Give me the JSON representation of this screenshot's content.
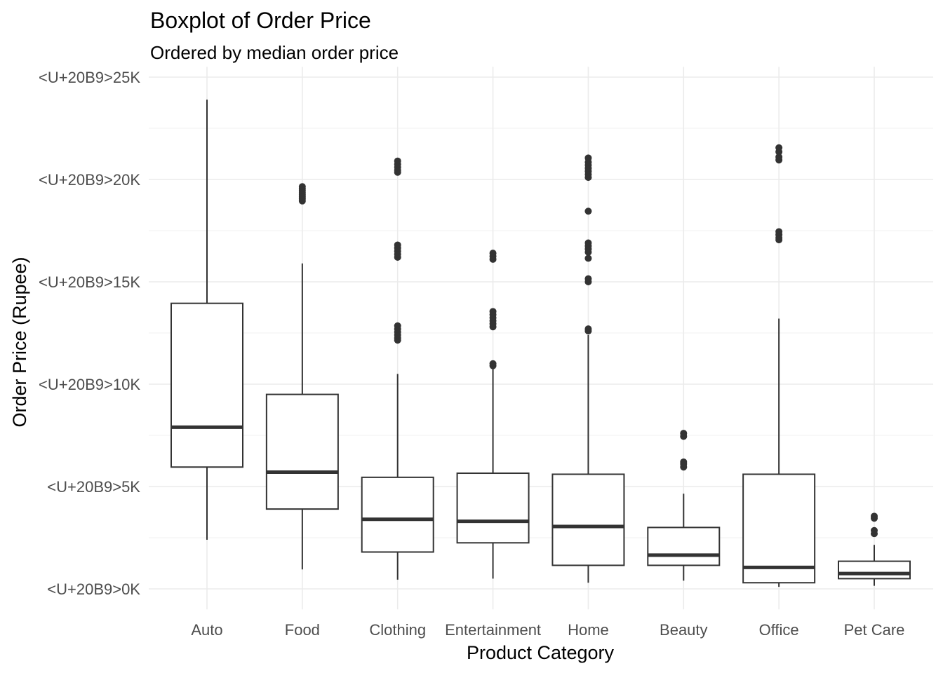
{
  "chart_data": {
    "type": "boxplot",
    "title": "Boxplot of Order Price",
    "subtitle": "Ordered by median order price",
    "xlabel": "Product Category",
    "ylabel": "Order Price (Rupee)",
    "ylim": [
      -1000,
      25500
    ],
    "y_ticks": [
      0,
      5000,
      10000,
      15000,
      20000,
      25000
    ],
    "y_minor_ticks": [
      2500,
      7500,
      12500,
      17500,
      22500
    ],
    "y_tick_labels": [
      "<U+20B9>0K",
      "<U+20B9>5K",
      "<U+20B9>10K",
      "<U+20B9>15K",
      "<U+20B9>20K",
      "<U+20B9>25K"
    ],
    "grid": true,
    "colors": {
      "box_line": "#333333",
      "grid": "#ebebeb",
      "outlier": "#333333"
    },
    "categories": [
      "Auto",
      "Food",
      "Clothing",
      "Entertainment",
      "Home",
      "Beauty",
      "Office",
      "Pet Care"
    ],
    "boxes": [
      {
        "category": "Auto",
        "min": 2400,
        "q1": 5950,
        "median": 7900,
        "q3": 13950,
        "max": 23900,
        "outliers": []
      },
      {
        "category": "Food",
        "min": 950,
        "q1": 3900,
        "median": 5700,
        "q3": 9500,
        "max": 15900,
        "outliers": [
          18950,
          19050,
          19150,
          19250,
          19350,
          19450,
          19550,
          19650
        ]
      },
      {
        "category": "Clothing",
        "min": 450,
        "q1": 1800,
        "median": 3400,
        "q3": 5450,
        "max": 10500,
        "outliers": [
          12150,
          12250,
          12400,
          12550,
          12700,
          12850,
          16200,
          16350,
          16500,
          16650,
          16800,
          20350,
          20450,
          20600,
          20750,
          20900
        ]
      },
      {
        "category": "Entertainment",
        "min": 500,
        "q1": 2250,
        "median": 3300,
        "q3": 5650,
        "max": 10800,
        "outliers": [
          10900,
          11000,
          12800,
          12950,
          13100,
          13250,
          13400,
          13550,
          16100,
          16250,
          16400
        ]
      },
      {
        "category": "Home",
        "min": 300,
        "q1": 1150,
        "median": 3050,
        "q3": 5600,
        "max": 12400,
        "outliers": [
          12600,
          12700,
          15000,
          15150,
          16150,
          16450,
          16600,
          16750,
          16900,
          18450,
          20100,
          20250,
          20400,
          20550,
          20700,
          20850,
          21050
        ]
      },
      {
        "category": "Beauty",
        "min": 400,
        "q1": 1150,
        "median": 1650,
        "q3": 3000,
        "max": 4650,
        "outliers": [
          5950,
          6100,
          6200,
          7450,
          7600
        ]
      },
      {
        "category": "Office",
        "min": 100,
        "q1": 300,
        "median": 1050,
        "q3": 5600,
        "max": 13200,
        "outliers": [
          17050,
          17150,
          17300,
          17450,
          20950,
          21100,
          21350,
          21550
        ]
      },
      {
        "category": "Pet Care",
        "min": 150,
        "q1": 500,
        "median": 750,
        "q3": 1350,
        "max": 2150,
        "outliers": [
          2700,
          2850,
          3450,
          3550
        ]
      }
    ]
  }
}
